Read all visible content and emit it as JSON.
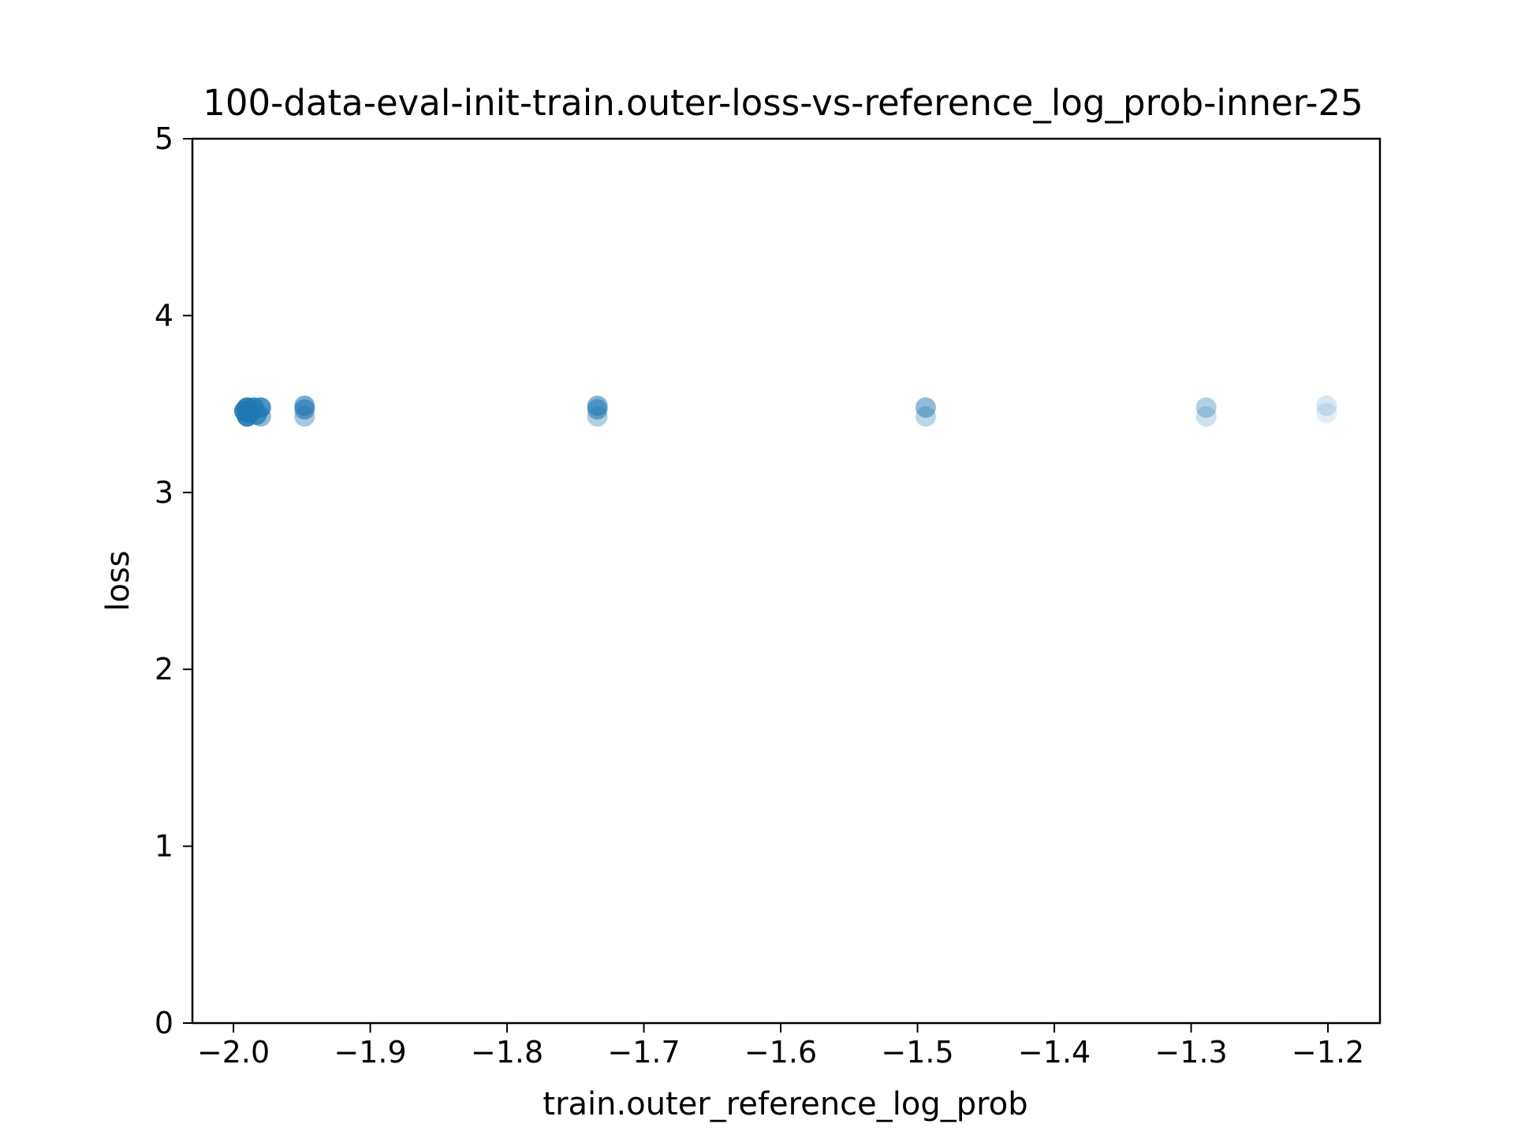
{
  "chart_data": {
    "type": "scatter",
    "title": "100-data-eval-init-train.outer-loss-vs-reference_log_prob-inner-25",
    "xlabel": "train.outer_reference_log_prob",
    "ylabel": "loss",
    "xlim": [
      -2.03,
      -1.162
    ],
    "ylim": [
      0,
      5
    ],
    "x_ticks": [
      -2.0,
      -1.9,
      -1.8,
      -1.7,
      -1.6,
      -1.5,
      -1.4,
      -1.3,
      -1.2
    ],
    "x_tick_labels": [
      "−2.0",
      "−1.9",
      "−1.8",
      "−1.7",
      "−1.6",
      "−1.5",
      "−1.4",
      "−1.3",
      "−1.2"
    ],
    "y_ticks": [
      0,
      1,
      2,
      3,
      4,
      5
    ],
    "y_tick_labels": [
      "0",
      "1",
      "2",
      "3",
      "4",
      "5"
    ],
    "grid": false,
    "marker_color": "#1f77b4",
    "series": [
      {
        "points": [
          {
            "x": -1.99,
            "y": 3.48,
            "alpha": 0.9
          },
          {
            "x": -1.99,
            "y": 3.43,
            "alpha": 0.9
          },
          {
            "x": -1.992,
            "y": 3.46,
            "alpha": 0.9
          },
          {
            "x": -1.988,
            "y": 3.45,
            "alpha": 0.9
          },
          {
            "x": -1.985,
            "y": 3.48,
            "alpha": 0.8
          },
          {
            "x": -1.983,
            "y": 3.44,
            "alpha": 0.7
          },
          {
            "x": -1.98,
            "y": 3.48,
            "alpha": 0.8
          },
          {
            "x": -1.98,
            "y": 3.43,
            "alpha": 0.5
          },
          {
            "x": -1.948,
            "y": 3.49,
            "alpha": 0.6
          },
          {
            "x": -1.948,
            "y": 3.47,
            "alpha": 0.6
          },
          {
            "x": -1.948,
            "y": 3.43,
            "alpha": 0.4
          },
          {
            "x": -1.734,
            "y": 3.49,
            "alpha": 0.55
          },
          {
            "x": -1.734,
            "y": 3.47,
            "alpha": 0.55
          },
          {
            "x": -1.734,
            "y": 3.43,
            "alpha": 0.35
          },
          {
            "x": -1.494,
            "y": 3.48,
            "alpha": 0.5
          },
          {
            "x": -1.494,
            "y": 3.43,
            "alpha": 0.3
          },
          {
            "x": -1.289,
            "y": 3.48,
            "alpha": 0.35
          },
          {
            "x": -1.289,
            "y": 3.43,
            "alpha": 0.22
          },
          {
            "x": -1.201,
            "y": 3.49,
            "alpha": 0.18
          },
          {
            "x": -1.201,
            "y": 3.45,
            "alpha": 0.12
          }
        ]
      }
    ]
  }
}
